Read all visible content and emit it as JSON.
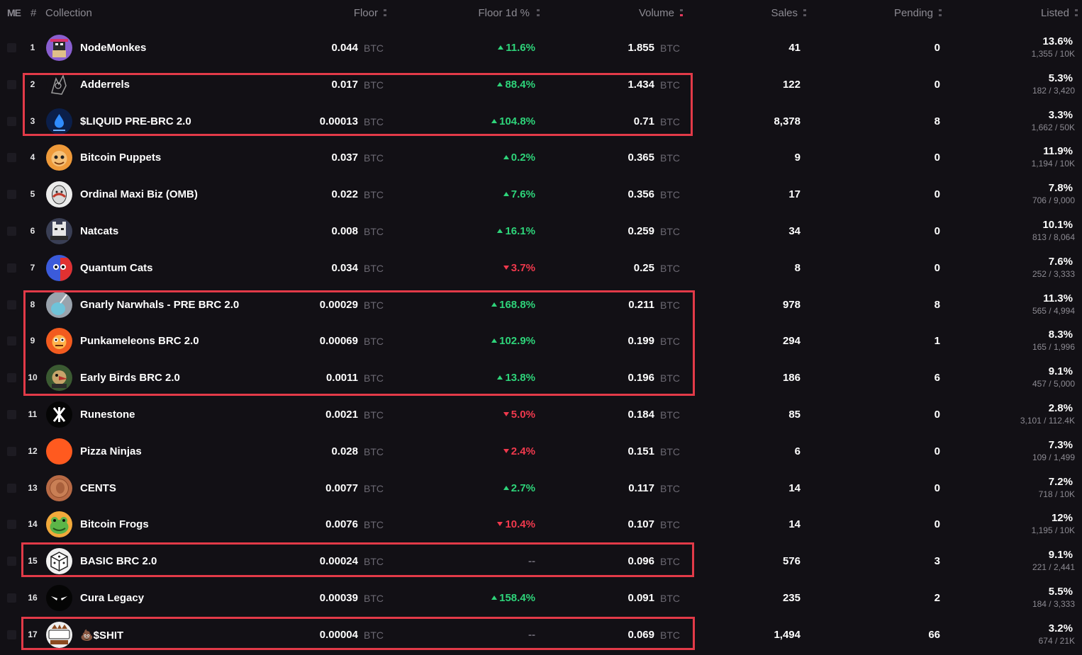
{
  "header": {
    "logo": "ME",
    "hash": "#",
    "collection": "Collection",
    "floor": "Floor",
    "floor_change": "Floor 1d %",
    "volume": "Volume",
    "sales": "Sales",
    "pending": "Pending",
    "listed": "Listed"
  },
  "colors": {
    "background": "#121015",
    "positive": "#2ed47a",
    "negative": "#f0394d",
    "highlight_box": "#e23a48",
    "muted": "#8c8a92"
  },
  "rows": [
    {
      "rank": "1",
      "name": "NodeMonkes",
      "floor": "0.044",
      "unit": "BTC",
      "change": "11.6%",
      "dir": "up",
      "volume": "1.855",
      "sales": "41",
      "pending": "0",
      "listed_pct": "13.6%",
      "listed": "1,355 / 10K",
      "avatar_icon": "pixel-monkey-icon"
    },
    {
      "rank": "2",
      "name": "Adderrels",
      "floor": "0.017",
      "unit": "BTC",
      "change": "88.4%",
      "dir": "up",
      "volume": "1.434",
      "sales": "122",
      "pending": "0",
      "listed_pct": "5.3%",
      "listed": "182 / 3,420",
      "avatar_icon": "squirrel-sketch-icon"
    },
    {
      "rank": "3",
      "name": "$LIQUID PRE-BRC 2.0",
      "floor": "0.00013",
      "unit": "BTC",
      "change": "104.8%",
      "dir": "up",
      "volume": "0.71",
      "sales": "8,378",
      "pending": "8",
      "listed_pct": "3.3%",
      "listed": "1,662 / 50K",
      "avatar_icon": "water-drop-icon"
    },
    {
      "rank": "4",
      "name": "Bitcoin Puppets",
      "floor": "0.037",
      "unit": "BTC",
      "change": "0.2%",
      "dir": "up",
      "volume": "0.365",
      "sales": "9",
      "pending": "0",
      "listed_pct": "11.9%",
      "listed": "1,194 / 10K",
      "avatar_icon": "puppet-face-icon"
    },
    {
      "rank": "5",
      "name": "Ordinal Maxi Biz (OMB)",
      "floor": "0.022",
      "unit": "BTC",
      "change": "7.6%",
      "dir": "up",
      "volume": "0.356",
      "sales": "17",
      "pending": "0",
      "listed_pct": "7.8%",
      "listed": "706 / 9,000",
      "avatar_icon": "omb-egg-icon"
    },
    {
      "rank": "6",
      "name": "Natcats",
      "floor": "0.008",
      "unit": "BTC",
      "change": "16.1%",
      "dir": "up",
      "volume": "0.259",
      "sales": "34",
      "pending": "0",
      "listed_pct": "10.1%",
      "listed": "813 / 8,064",
      "avatar_icon": "pixel-cat-icon"
    },
    {
      "rank": "7",
      "name": "Quantum Cats",
      "floor": "0.034",
      "unit": "BTC",
      "change": "3.7%",
      "dir": "down",
      "volume": "0.25",
      "sales": "8",
      "pending": "0",
      "listed_pct": "7.6%",
      "listed": "252 / 3,333",
      "avatar_icon": "quantum-cat-icon"
    },
    {
      "rank": "8",
      "name": "Gnarly Narwhals - PRE BRC 2.0",
      "floor": "0.00029",
      "unit": "BTC",
      "change": "168.8%",
      "dir": "up",
      "volume": "0.211",
      "sales": "978",
      "pending": "8",
      "listed_pct": "11.3%",
      "listed": "565 / 4,994",
      "avatar_icon": "narwhal-icon"
    },
    {
      "rank": "9",
      "name": "Punkameleons BRC 2.0",
      "floor": "0.00069",
      "unit": "BTC",
      "change": "102.9%",
      "dir": "up",
      "volume": "0.199",
      "sales": "294",
      "pending": "1",
      "listed_pct": "8.3%",
      "listed": "165 / 1,996",
      "avatar_icon": "chameleon-icon"
    },
    {
      "rank": "10",
      "name": "Early Birds BRC 2.0",
      "floor": "0.0011",
      "unit": "BTC",
      "change": "13.8%",
      "dir": "up",
      "volume": "0.196",
      "sales": "186",
      "pending": "6",
      "listed_pct": "9.1%",
      "listed": "457 / 5,000",
      "avatar_icon": "bird-icon"
    },
    {
      "rank": "11",
      "name": "Runestone",
      "floor": "0.0021",
      "unit": "BTC",
      "change": "5.0%",
      "dir": "down",
      "volume": "0.184",
      "sales": "85",
      "pending": "0",
      "listed_pct": "2.8%",
      "listed": "3,101 / 112.4K",
      "avatar_icon": "rune-icon"
    },
    {
      "rank": "12",
      "name": "Pizza Ninjas",
      "floor": "0.028",
      "unit": "BTC",
      "change": "2.4%",
      "dir": "down",
      "volume": "0.151",
      "sales": "6",
      "pending": "0",
      "listed_pct": "7.3%",
      "listed": "109 / 1,499",
      "avatar_icon": "orange-circle-icon"
    },
    {
      "rank": "13",
      "name": "CENTS",
      "floor": "0.0077",
      "unit": "BTC",
      "change": "2.7%",
      "dir": "up",
      "volume": "0.117",
      "sales": "14",
      "pending": "0",
      "listed_pct": "7.2%",
      "listed": "718 / 10K",
      "avatar_icon": "penny-icon"
    },
    {
      "rank": "14",
      "name": "Bitcoin Frogs",
      "floor": "0.0076",
      "unit": "BTC",
      "change": "10.4%",
      "dir": "down",
      "volume": "0.107",
      "sales": "14",
      "pending": "0",
      "listed_pct": "12%",
      "listed": "1,195 / 10K",
      "avatar_icon": "frog-icon"
    },
    {
      "rank": "15",
      "name": "BASIC BRC 2.0",
      "floor": "0.00024",
      "unit": "BTC",
      "change": "--",
      "dir": "flat",
      "volume": "0.096",
      "sales": "576",
      "pending": "3",
      "listed_pct": "9.1%",
      "listed": "221 / 2,441",
      "avatar_icon": "dice-icon"
    },
    {
      "rank": "16",
      "name": "Cura Legacy",
      "floor": "0.00039",
      "unit": "BTC",
      "change": "158.4%",
      "dir": "up",
      "volume": "0.091",
      "sales": "235",
      "pending": "2",
      "listed_pct": "5.5%",
      "listed": "184 / 3,333",
      "avatar_icon": "mask-eyes-icon"
    },
    {
      "rank": "17",
      "name": "💩$SHIT",
      "floor": "0.00004",
      "unit": "BTC",
      "change": "--",
      "dir": "flat",
      "volume": "0.069",
      "sales": "1,494",
      "pending": "66",
      "listed_pct": "3.2%",
      "listed": "674 / 21K",
      "avatar_icon": "shit-badge-icon",
      "avatar_text": "$SHIT"
    }
  ]
}
